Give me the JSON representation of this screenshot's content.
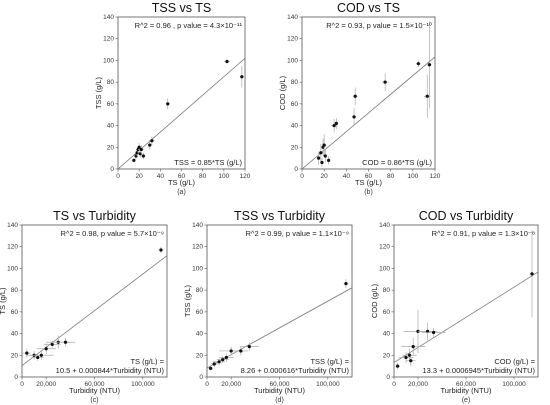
{
  "chart_data": [
    {
      "id": "a",
      "type": "scatter",
      "title": "TSS vs TS",
      "xlabel": "TS (g/L)",
      "ylabel": "TSS (g/L)",
      "xlim": [
        0,
        120
      ],
      "ylim": [
        0,
        140
      ],
      "x_ticks": [
        "0",
        "20",
        "40",
        "60",
        "80",
        "100",
        "120"
      ],
      "y_ticks": [
        "0",
        "20",
        "40",
        "60",
        "80",
        "100",
        "120",
        "140"
      ],
      "x_tick_values": [
        0,
        20,
        40,
        60,
        80,
        100,
        120
      ],
      "y_tick_values": [
        0,
        20,
        40,
        60,
        80,
        100,
        120,
        140
      ],
      "stats": "R^2 = 0.96 , p value = 4.3×10⁻¹¹",
      "equation": [
        "TSS = 0.85*TS (g/L)"
      ],
      "caption": "(a)",
      "fit": {
        "slope": 0.85,
        "intercept": 0
      },
      "points": [
        {
          "x": 15,
          "y": 8,
          "ex": 1,
          "ey": 2
        },
        {
          "x": 17,
          "y": 12,
          "ex": 1,
          "ey": 3
        },
        {
          "x": 18,
          "y": 15,
          "ex": 1,
          "ey": 3
        },
        {
          "x": 19,
          "y": 18,
          "ex": 2,
          "ey": 3
        },
        {
          "x": 20,
          "y": 20,
          "ex": 2,
          "ey": 4
        },
        {
          "x": 21,
          "y": 14,
          "ex": 2,
          "ey": 3
        },
        {
          "x": 22,
          "y": 18,
          "ex": 3,
          "ey": 4
        },
        {
          "x": 24,
          "y": 12,
          "ex": 2,
          "ey": 3
        },
        {
          "x": 30,
          "y": 22,
          "ex": 2,
          "ey": 4
        },
        {
          "x": 32,
          "y": 26,
          "ex": 3,
          "ey": 4
        },
        {
          "x": 47,
          "y": 60,
          "ex": 2,
          "ey": 5
        },
        {
          "x": 103,
          "y": 99,
          "ex": 3,
          "ey": 2
        },
        {
          "x": 117,
          "y": 85,
          "ex": 2,
          "ey": 10
        }
      ]
    },
    {
      "id": "b",
      "type": "scatter",
      "title": "COD vs TS",
      "xlabel": "TS (g/L)",
      "ylabel": "COD (g/L)",
      "xlim": [
        0,
        120
      ],
      "ylim": [
        0,
        140
      ],
      "x_ticks": [
        "0",
        "20",
        "40",
        "60",
        "80",
        "100",
        "120"
      ],
      "y_ticks": [
        "0",
        "20",
        "40",
        "60",
        "80",
        "100",
        "120",
        "140"
      ],
      "x_tick_values": [
        0,
        20,
        40,
        60,
        80,
        100,
        120
      ],
      "y_tick_values": [
        0,
        20,
        40,
        60,
        80,
        100,
        120,
        140
      ],
      "stats": "R^2 = 0.93, p value = 1.5×10⁻¹⁰",
      "equation": [
        "COD = 0.86*TS (g/L)"
      ],
      "caption": "(b)",
      "fit": {
        "slope": 0.86,
        "intercept": 0
      },
      "points": [
        {
          "x": 15,
          "y": 10,
          "ex": 1,
          "ey": 6
        },
        {
          "x": 17,
          "y": 15,
          "ex": 2,
          "ey": 8
        },
        {
          "x": 18,
          "y": 6,
          "ex": 1,
          "ey": 4
        },
        {
          "x": 19,
          "y": 20,
          "ex": 2,
          "ey": 8
        },
        {
          "x": 20,
          "y": 22,
          "ex": 2,
          "ey": 10
        },
        {
          "x": 21,
          "y": 12,
          "ex": 2,
          "ey": 6
        },
        {
          "x": 24,
          "y": 8,
          "ex": 1,
          "ey": 4
        },
        {
          "x": 29,
          "y": 40,
          "ex": 3,
          "ey": 6
        },
        {
          "x": 31,
          "y": 42,
          "ex": 2,
          "ey": 5
        },
        {
          "x": 47,
          "y": 48,
          "ex": 2,
          "ey": 8
        },
        {
          "x": 48,
          "y": 67,
          "ex": 2,
          "ey": 8
        },
        {
          "x": 75,
          "y": 80,
          "ex": 3,
          "ey": 8
        },
        {
          "x": 105,
          "y": 97,
          "ex": 2,
          "ey": 3
        },
        {
          "x": 115,
          "y": 96,
          "ex": 2,
          "ey": 40
        },
        {
          "x": 113,
          "y": 67,
          "ex": 3,
          "ey": 20
        }
      ]
    },
    {
      "id": "c",
      "type": "scatter",
      "title": "TS vs Turbidity",
      "xlabel": "Turbidity (NTU)",
      "ylabel": "TS (g/L)",
      "xlim": [
        0,
        120000
      ],
      "ylim": [
        0,
        140
      ],
      "x_ticks": [
        "0",
        "20,000",
        "60,000",
        "100,000"
      ],
      "y_ticks": [
        "0",
        "20",
        "40",
        "60",
        "80",
        "100",
        "120",
        "140"
      ],
      "x_tick_values": [
        0,
        20000,
        60000,
        100000
      ],
      "y_tick_values": [
        0,
        20,
        40,
        60,
        80,
        100,
        120,
        140
      ],
      "stats": "R^2 = 0.98, p value = 5.7×10⁻⁹",
      "equation": [
        "TS (g/L) =",
        "10.5 + 0.000844*Turbidity (NTU)"
      ],
      "caption": "(c)",
      "fit": {
        "slope": 0.000844,
        "intercept": 10.5
      },
      "points": [
        {
          "x": 4000,
          "y": 22,
          "ex": 3000,
          "ey": 4
        },
        {
          "x": 10000,
          "y": 20,
          "ex": 6000,
          "ey": 4
        },
        {
          "x": 13000,
          "y": 18,
          "ex": 5000,
          "ey": 3
        },
        {
          "x": 16000,
          "y": 20,
          "ex": 10000,
          "ey": 4
        },
        {
          "x": 20000,
          "y": 26,
          "ex": 8000,
          "ey": 5
        },
        {
          "x": 25000,
          "y": 30,
          "ex": 7000,
          "ey": 4
        },
        {
          "x": 30000,
          "y": 32,
          "ex": 10000,
          "ey": 6
        },
        {
          "x": 36000,
          "y": 32,
          "ex": 8000,
          "ey": 4
        },
        {
          "x": 115000,
          "y": 117,
          "ex": 2000,
          "ey": 3
        }
      ]
    },
    {
      "id": "d",
      "type": "scatter",
      "title": "TSS vs Turbidity",
      "xlabel": "Turbidity (NTU)",
      "ylabel": "TSS (g/L)",
      "xlim": [
        0,
        120000
      ],
      "ylim": [
        0,
        140
      ],
      "x_ticks": [
        "0",
        "20,000",
        "60,000",
        "100,000"
      ],
      "y_ticks": [
        "0",
        "20",
        "40",
        "60",
        "80",
        "100",
        "120",
        "140"
      ],
      "x_tick_values": [
        0,
        20000,
        60000,
        100000
      ],
      "y_tick_values": [
        0,
        20,
        40,
        60,
        80,
        100,
        120,
        140
      ],
      "stats": "R^2 = 0.99, p value = 1.1×10⁻⁹",
      "equation": [
        "TSS (g/L) =",
        "8.26 + 0.000616*Turbidity (NTU)"
      ],
      "caption": "(d)",
      "fit": {
        "slope": 0.000616,
        "intercept": 8.26
      },
      "points": [
        {
          "x": 3000,
          "y": 8,
          "ex": 2000,
          "ey": 2
        },
        {
          "x": 6000,
          "y": 12,
          "ex": 3000,
          "ey": 3
        },
        {
          "x": 10000,
          "y": 14,
          "ex": 5000,
          "ey": 3
        },
        {
          "x": 13000,
          "y": 16,
          "ex": 5000,
          "ey": 3
        },
        {
          "x": 16000,
          "y": 18,
          "ex": 6000,
          "ey": 4
        },
        {
          "x": 20000,
          "y": 24,
          "ex": 10000,
          "ey": 4
        },
        {
          "x": 28000,
          "y": 24,
          "ex": 6000,
          "ey": 4
        },
        {
          "x": 35000,
          "y": 28,
          "ex": 8000,
          "ey": 4
        },
        {
          "x": 115000,
          "y": 86,
          "ex": 2000,
          "ey": 4
        }
      ]
    },
    {
      "id": "e",
      "type": "scatter",
      "title": "COD vs Turbidity",
      "xlabel": "Turbidity (NTU)",
      "ylabel": "COD (g/L)",
      "xlim": [
        0,
        120000
      ],
      "ylim": [
        0,
        140
      ],
      "x_ticks": [
        "0",
        "20,000",
        "60,000",
        "100,000"
      ],
      "y_ticks": [
        "0",
        "20",
        "40",
        "60",
        "80",
        "100",
        "120",
        "140"
      ],
      "x_tick_values": [
        0,
        20000,
        60000,
        100000
      ],
      "y_tick_values": [
        0,
        20,
        40,
        60,
        80,
        100,
        120,
        140
      ],
      "stats": "R^2 = 0.91, p value = 1.3×10⁻⁸",
      "equation": [
        "COD (g/L) =",
        "13.3 + 0.0006945*Turbidity (NTU)"
      ],
      "caption": "(e)",
      "fit": {
        "slope": 0.0006945,
        "intercept": 13.3
      },
      "points": [
        {
          "x": 3000,
          "y": 10,
          "ex": 2000,
          "ey": 3
        },
        {
          "x": 10000,
          "y": 18,
          "ex": 6000,
          "ey": 5
        },
        {
          "x": 13000,
          "y": 20,
          "ex": 6000,
          "ey": 6
        },
        {
          "x": 14000,
          "y": 15,
          "ex": 4000,
          "ey": 5
        },
        {
          "x": 16000,
          "y": 28,
          "ex": 10000,
          "ey": 8
        },
        {
          "x": 20000,
          "y": 42,
          "ex": 12000,
          "ey": 20
        },
        {
          "x": 28000,
          "y": 42,
          "ex": 8000,
          "ey": 8
        },
        {
          "x": 33000,
          "y": 41,
          "ex": 10000,
          "ey": 4
        },
        {
          "x": 115000,
          "y": 95,
          "ex": 2000,
          "ey": 40
        }
      ]
    }
  ]
}
